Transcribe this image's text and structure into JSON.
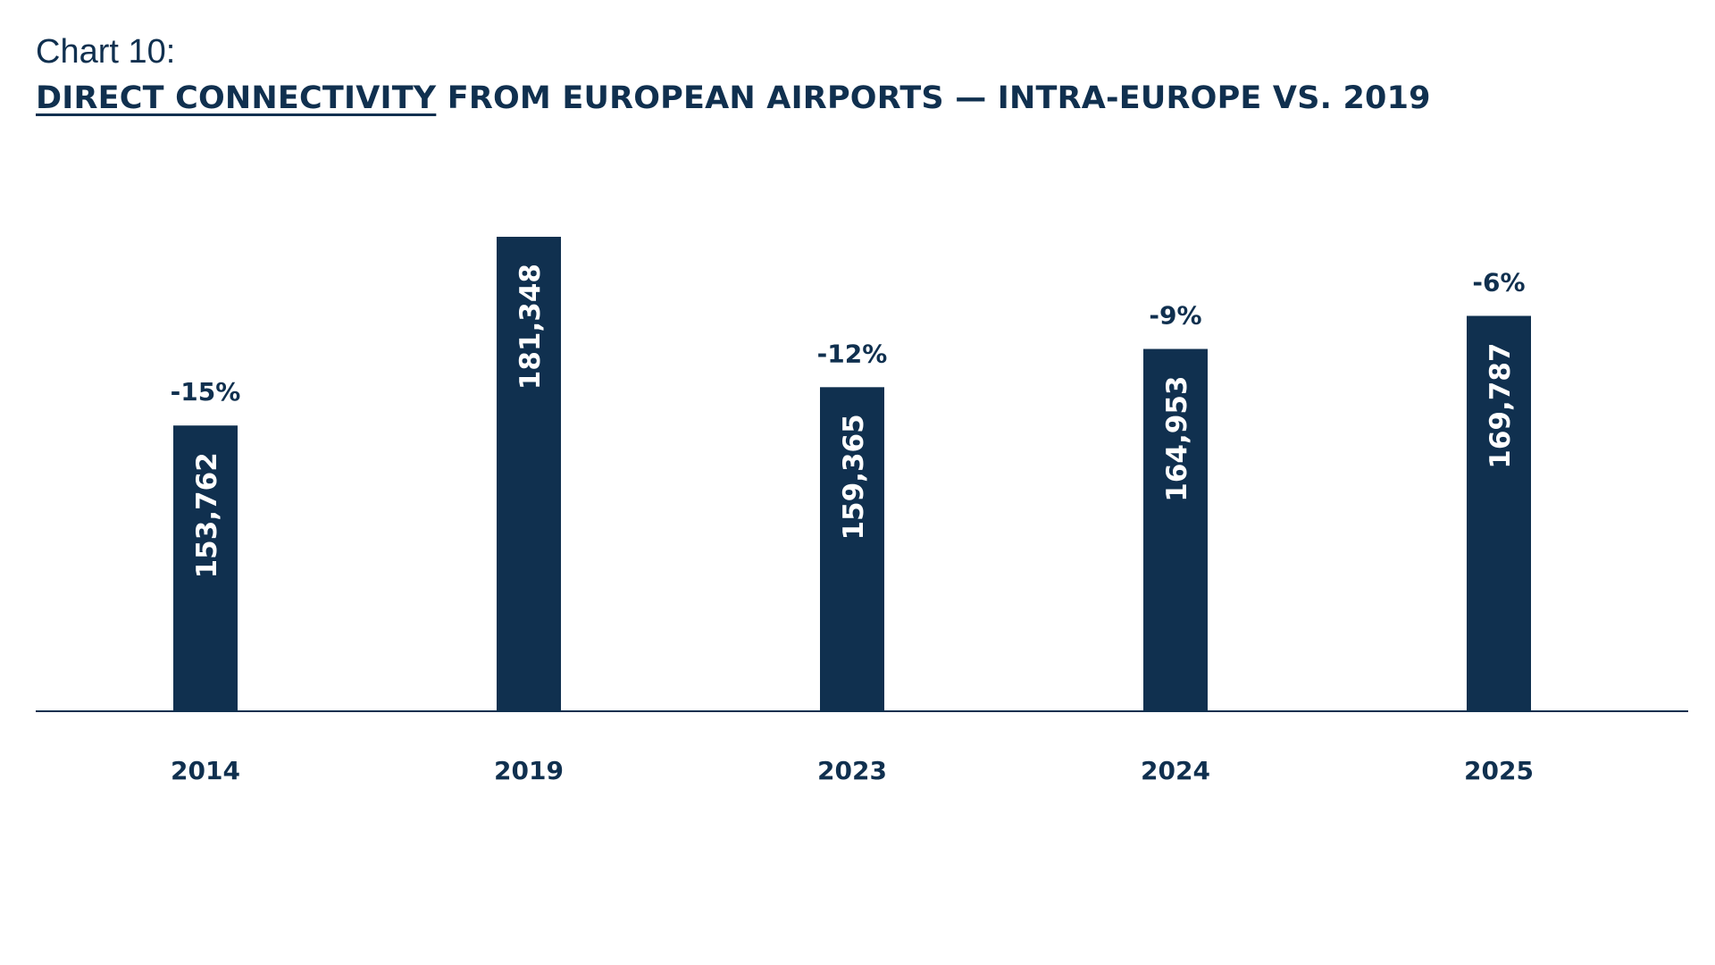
{
  "header": {
    "chart_label": "Chart 10:",
    "title_underlined": "DIRECT CONNECTIVITY",
    "title_rest": " FROM EUROPEAN AIRPORTS — INTRA-EUROPE VS. 2019"
  },
  "colors": {
    "bar": "#10304f",
    "text": "#10304f",
    "bar_label": "#ffffff",
    "axis": "#10304f"
  },
  "chart_data": {
    "type": "bar",
    "title": "DIRECT CONNECTIVITY FROM EUROPEAN AIRPORTS — INTRA-EUROPE VS. 2019",
    "categories": [
      "2014",
      "2019",
      "2023",
      "2024",
      "2025"
    ],
    "values": [
      153762,
      181348,
      159365,
      164953,
      169787
    ],
    "value_labels": [
      "153,762",
      "181,348",
      "159,365",
      "164,953",
      "169,787"
    ],
    "change_labels": [
      "-15%",
      "",
      "-12%",
      "-9%",
      "-6%"
    ],
    "xlabel": "",
    "ylabel": "",
    "ylim": [
      112000,
      181348
    ],
    "grid": false,
    "legend": "none"
  }
}
